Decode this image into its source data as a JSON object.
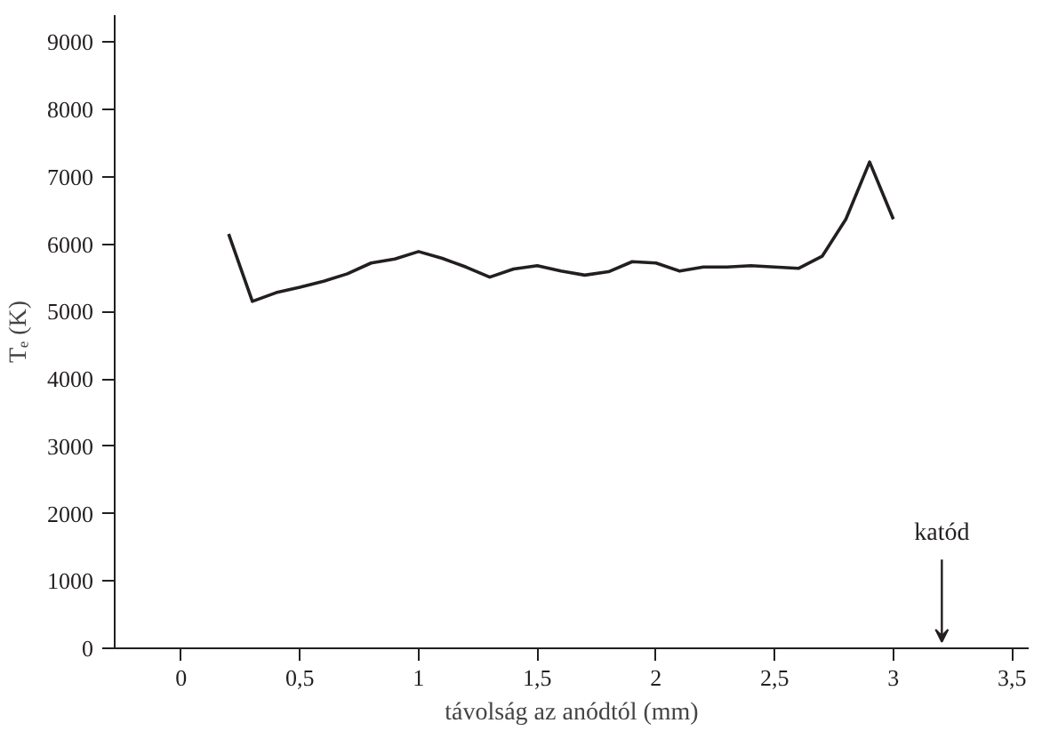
{
  "chart_data": {
    "type": "line",
    "xlabel": "távolság az anódtól (mm)",
    "ylabel": "Tₑ (K)",
    "x": [
      0.2,
      0.3,
      0.4,
      0.5,
      0.6,
      0.7,
      0.8,
      0.9,
      1.0,
      1.1,
      1.2,
      1.3,
      1.4,
      1.5,
      1.6,
      1.7,
      1.8,
      1.9,
      2.0,
      2.1,
      2.2,
      2.3,
      2.4,
      2.5,
      2.6,
      2.7,
      2.8,
      2.9,
      3.0
    ],
    "series": [
      {
        "color": "#231f20",
        "values": [
          6150,
          5150,
          5280,
          5360,
          5450,
          5560,
          5720,
          5780,
          5890,
          5790,
          5660,
          5510,
          5630,
          5680,
          5600,
          5540,
          5590,
          5740,
          5720,
          5600,
          5660,
          5660,
          5680,
          5660,
          5640,
          5820,
          6370,
          7220,
          6370
        ]
      }
    ],
    "xlim": [
      -0.28,
      3.57
    ],
    "ylim": [
      0,
      9400
    ],
    "xticks": [
      {
        "value": 0,
        "label": "0"
      },
      {
        "value": 0.5,
        "label": "0,5"
      },
      {
        "value": 1,
        "label": "1"
      },
      {
        "value": 1.5,
        "label": "1,5"
      },
      {
        "value": 2,
        "label": "2"
      },
      {
        "value": 2.5,
        "label": "2,5"
      },
      {
        "value": 3,
        "label": "3"
      },
      {
        "value": 3.5,
        "label": "3,5"
      }
    ],
    "yticks": [
      0,
      1000,
      2000,
      3000,
      4000,
      5000,
      6000,
      7000,
      8000,
      9000
    ],
    "annotations": [
      "katód"
    ],
    "grid": false,
    "marker": "none",
    "line_style": "solid"
  }
}
